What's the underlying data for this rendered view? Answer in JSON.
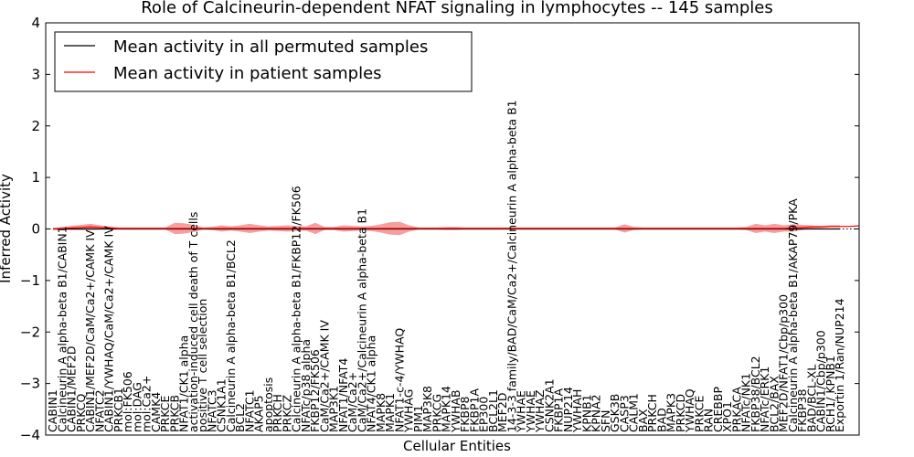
{
  "chart_data": {
    "type": "line",
    "title": "Role of Calcineurin-dependent NFAT signaling in lymphocytes -- 145 samples",
    "xlabel": "Cellular Entities",
    "ylabel": "Inferred Activity",
    "ylim": [
      -4,
      4
    ],
    "yticks": [
      "−4",
      "−3",
      "−2",
      "−1",
      "0",
      "1",
      "2",
      "3",
      "4"
    ],
    "legend": {
      "placement": "top-left"
    },
    "series": [
      {
        "name": "Mean activity in all permuted samples",
        "color": "#000000"
      },
      {
        "name": "Mean activity in patient samples",
        "color": "#ff0000"
      }
    ],
    "band_color": "#f08080",
    "categories": [
      "CABIN1",
      "Calcineurin A alpha-beta B1/CABIN1",
      "CABIN1/MEF2D",
      "PRKCQ",
      "CABIN1/MEF2D/CaM/Ca2+/CAMK IV",
      "NFATC2",
      "CABIN1/YWHAQ/CaM/Ca2+/CAMK IV",
      "PRKCB1",
      "mol:FK506",
      "mol:DAG",
      "mol:Ca2+",
      "CAMK4",
      "PRKCE",
      "PRKCB",
      "NFAT1/CK1 alpha",
      "activation-induced cell death of T cells",
      "positive T cell selection",
      "NFATC3",
      "CSNK1A1",
      "Calcineurin A alpha-beta B1/BCL2",
      "BCL2",
      "NFATC1",
      "AKAP5",
      "apoptosis",
      "PRKCH",
      "PRKCZ",
      "Calcineurin A alpha-beta B1/FKBP12/FK506",
      "NFATc/p38 alpha",
      "FKBP12/FK506",
      "CaM/Ca2+/CAMK IV",
      "MAP3K1",
      "NFAT1/NFAT4",
      "CaM/Ca2+",
      "CaM/Ca2+/Calcineurin A alpha-beta B1",
      "NFAT4/CK1 alpha",
      "MAPK8",
      "MAPK1",
      "NFAT1-c-4/YWHAQ",
      "YWHAG",
      "PIM1",
      "MAP3K8",
      "PRKCG",
      "MAPK14",
      "YWHAB",
      "FKBP8",
      "FKBP1A",
      "EP300",
      "BCL2L1",
      "MEF2D",
      "14-3-3 family/BAD/CaM/Ca2+/Calcineurin A alpha-beta B1",
      "YWHAE",
      "YWHAE",
      "YWHAZ",
      "CSNK2A1",
      "FKBP1A",
      "NUP214",
      "YWHAH",
      "KPNB1",
      "KPNA2",
      "SFN",
      "GSK3B",
      "CASP3",
      "CALM1",
      "BAX",
      "PRKCH",
      "BAD",
      "MAPK3",
      "PRKCD",
      "YWHAQ",
      "PRKCE",
      "RAN",
      "CREBBP",
      "XPO1",
      "PRKACA",
      "NFATc/NK1",
      "FKBP38/BCL2",
      "NFATc/ERK1",
      "BCL2/BAX",
      "MEF2D/NFAT1/Cbp/p300",
      "Calcineurin A alpha-beta B1/AKAP79/PKA",
      "FKBP38",
      "BAD/BCL-XL",
      "CABIN1/Cbp/p300",
      "RCH1/ KPNB1",
      "Exportin 1/Ran/NUP214"
    ],
    "mean_patient": [
      0.0,
      0.01,
      0.02,
      0.03,
      0.04,
      0.03,
      0.02,
      0.01,
      0.01,
      0.01,
      0.01,
      0.01,
      0.01,
      0.01,
      0.01,
      0.01,
      0.01,
      0.01,
      0.01,
      0.01,
      0.01,
      0.01,
      0.01,
      0.01,
      0.01,
      0.01,
      0.01,
      0.01,
      0.01,
      0.01,
      0.01,
      0.01,
      0.01,
      0.01,
      0.01,
      0.01,
      0.01,
      0.01,
      0.01,
      0.01,
      0.01,
      0.01,
      0.01,
      0.01,
      0.01,
      0.01,
      0.01,
      0.01,
      0.01,
      0.01,
      0.01,
      0.01,
      0.01,
      0.01,
      0.01,
      0.01,
      0.01,
      0.01,
      0.01,
      0.01,
      0.01,
      0.01,
      0.01,
      0.01,
      0.01,
      0.01,
      0.01,
      0.01,
      0.01,
      0.01,
      0.01,
      0.01,
      0.01,
      0.01,
      0.01,
      0.01,
      0.01,
      0.01,
      0.01,
      0.02,
      0.03,
      0.04,
      0.04,
      0.05,
      0.05,
      0.05,
      0.06
    ],
    "band_halfwidth": [
      0.02,
      0.03,
      0.04,
      0.05,
      0.06,
      0.04,
      0.03,
      0.02,
      0.02,
      0.02,
      0.02,
      0.02,
      0.02,
      0.11,
      0.1,
      0.07,
      0.02,
      0.03,
      0.06,
      0.04,
      0.06,
      0.09,
      0.06,
      0.04,
      0.05,
      0.06,
      0.05,
      0.04,
      0.11,
      0.03,
      0.03,
      0.06,
      0.05,
      0.04,
      0.05,
      0.08,
      0.12,
      0.13,
      0.06,
      0.02,
      0.02,
      0.02,
      0.03,
      0.03,
      0.02,
      0.02,
      0.02,
      0.02,
      0.02,
      0.02,
      0.02,
      0.02,
      0.02,
      0.02,
      0.02,
      0.02,
      0.02,
      0.02,
      0.02,
      0.02,
      0.02,
      0.08,
      0.03,
      0.02,
      0.02,
      0.02,
      0.02,
      0.02,
      0.02,
      0.02,
      0.02,
      0.02,
      0.02,
      0.02,
      0.03,
      0.09,
      0.06,
      0.09,
      0.06,
      0.07,
      0.05,
      0.03,
      0.02,
      0.02,
      0.02,
      0.02,
      0.02
    ]
  }
}
